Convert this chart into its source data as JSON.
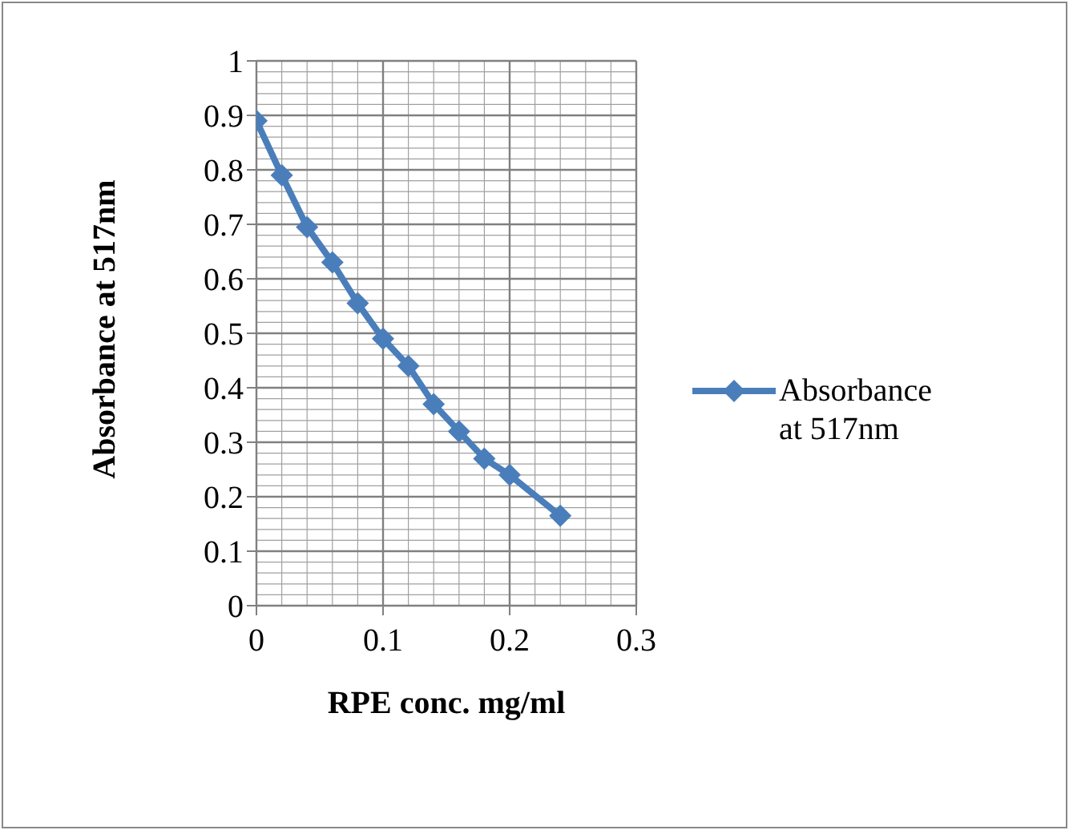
{
  "chart_data": {
    "type": "line",
    "xlabel": "RPE conc. mg/ml",
    "ylabel": "Absorbance at 517nm",
    "x": [
      0,
      0.02,
      0.04,
      0.06,
      0.08,
      0.1,
      0.12,
      0.14,
      0.16,
      0.18,
      0.2,
      0.24
    ],
    "series": [
      {
        "name": "Absorbance at 517nm",
        "color": "#4a7ebb",
        "values": [
          0.89,
          0.79,
          0.695,
          0.63,
          0.555,
          0.49,
          0.44,
          0.37,
          0.32,
          0.27,
          0.24,
          0.165
        ]
      }
    ],
    "xlim": [
      0,
      0.3
    ],
    "xticks": [
      0,
      0.1,
      0.2,
      0.3
    ],
    "ylim": [
      0,
      1
    ],
    "yticks": [
      0,
      0.1,
      0.2,
      0.3,
      0.4,
      0.5,
      0.6,
      0.7,
      0.8,
      0.9,
      1
    ],
    "grid": true,
    "legend": "right",
    "marker": "diamond",
    "line_style": "solid"
  }
}
